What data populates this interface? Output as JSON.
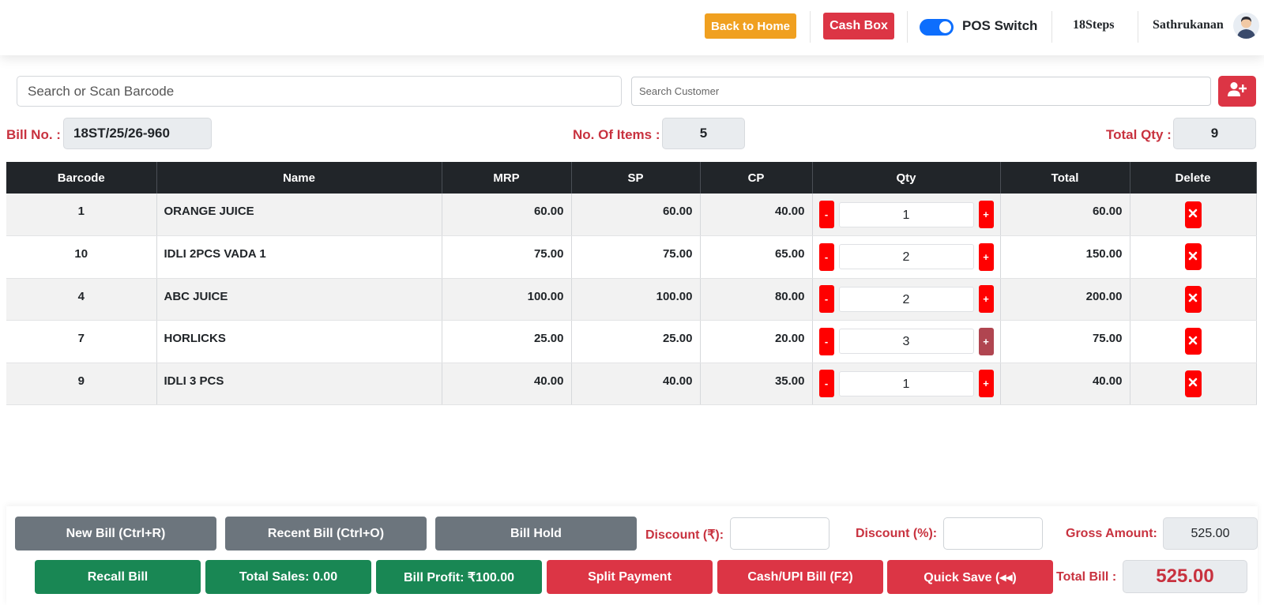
{
  "header": {
    "back_home_label": "Back to Home",
    "cash_box_label": "Cash Box",
    "pos_switch_label": "POS Switch",
    "pos_switch_on": true,
    "company_name": "18Steps",
    "user_name": "Sathrukanan"
  },
  "search": {
    "barcode_placeholder": "Search or Scan Barcode",
    "customer_placeholder": "Search Customer"
  },
  "bill_info": {
    "bill_no_label": "Bill No. :",
    "bill_no": "18ST/25/26-960",
    "items_label": "No. Of Items :",
    "items_count": "5",
    "total_qty_label": "Total Qty :",
    "total_qty": "9"
  },
  "table": {
    "headers": [
      "Barcode",
      "Name",
      "MRP",
      "SP",
      "CP",
      "Qty",
      "Total",
      "Delete"
    ],
    "rows": [
      {
        "barcode": "1",
        "name": "ORANGE JUICE",
        "mrp": "60.00",
        "sp": "60.00",
        "cp": "40.00",
        "qty": "1",
        "total": "60.00"
      },
      {
        "barcode": "10",
        "name": "IDLI 2PCS VADA 1",
        "mrp": "75.00",
        "sp": "75.00",
        "cp": "65.00",
        "qty": "2",
        "total": "150.00"
      },
      {
        "barcode": "4",
        "name": "ABC JUICE",
        "mrp": "100.00",
        "sp": "100.00",
        "cp": "80.00",
        "qty": "2",
        "total": "200.00"
      },
      {
        "barcode": "7",
        "name": "HORLICKS",
        "mrp": "25.00",
        "sp": "25.00",
        "cp": "20.00",
        "qty": "3",
        "total": "75.00"
      },
      {
        "barcode": "9",
        "name": "IDLI 3 PCS",
        "mrp": "40.00",
        "sp": "40.00",
        "cp": "35.00",
        "qty": "1",
        "total": "40.00"
      }
    ],
    "minus_label": "-",
    "plus_label": "+"
  },
  "footer": {
    "new_bill_label": "New Bill (Ctrl+R)",
    "recent_bill_label": "Recent Bill (Ctrl+O)",
    "bill_hold_label": "Bill Hold",
    "discount_amount_label": "Discount (₹):",
    "discount_percent_label": "Discount (%):",
    "gross_amount_label": "Gross Amount:",
    "gross_amount": "525.00",
    "recall_bill_label": "Recall Bill",
    "total_sales_label": "Total Sales: 0.00",
    "bill_profit_label": "Bill Profit: ₹100.00",
    "split_payment_label": "Split Payment",
    "cash_upi_label": "Cash/UPI Bill (F2)",
    "quick_save_label": "Quick Save (◂◂)",
    "total_bill_label": "Total Bill :",
    "total_bill": "525.00"
  },
  "colors": {
    "primary_red": "#dc3545",
    "label_red": "#c8323f",
    "success_green": "#198754",
    "secondary_gray": "#6c757d",
    "warning_orange": "#f0a020",
    "toggle_blue": "#0d6efd",
    "qty_btn_red": "#ff0000"
  }
}
